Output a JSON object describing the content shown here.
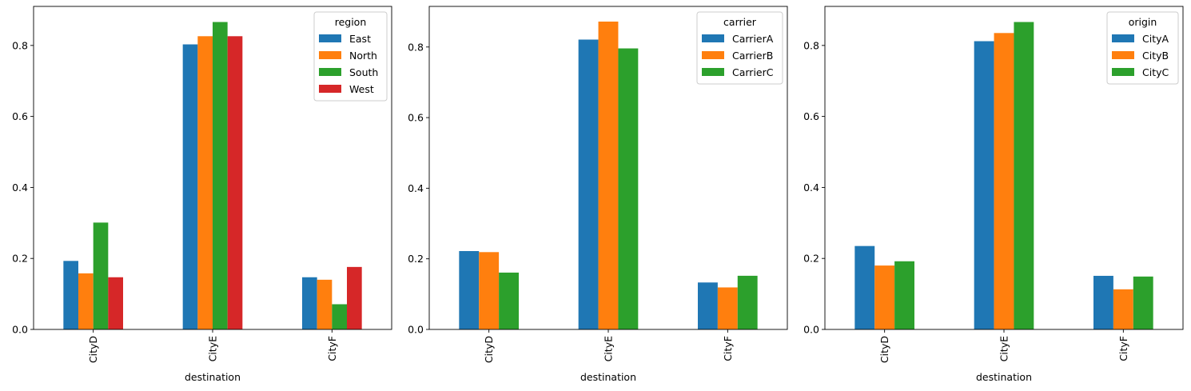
{
  "chart_data": [
    {
      "type": "bar",
      "categories": [
        "CityD",
        "CityE",
        "CityF"
      ],
      "xlabel": "destination",
      "ylabel": "",
      "ylim": [
        0,
        0.91
      ],
      "yticks": [
        "0.0",
        "0.2",
        "0.4",
        "0.6",
        "0.8"
      ],
      "ytick_values": [
        0,
        0.2,
        0.4,
        0.6,
        0.8
      ],
      "legend_title": "region",
      "legend_placement": "top-right",
      "series": [
        {
          "name": "East",
          "color": "#1f77b4",
          "values": [
            0.193,
            0.803,
            0.147
          ]
        },
        {
          "name": "North",
          "color": "#ff7f0e",
          "values": [
            0.158,
            0.826,
            0.14
          ]
        },
        {
          "name": "South",
          "color": "#2ca02c",
          "values": [
            0.301,
            0.866,
            0.071
          ]
        },
        {
          "name": "West",
          "color": "#d62728",
          "values": [
            0.147,
            0.826,
            0.176
          ]
        }
      ]
    },
    {
      "type": "bar",
      "categories": [
        "CityD",
        "CityE",
        "CityF"
      ],
      "xlabel": "destination",
      "ylabel": "",
      "ylim": [
        0,
        0.915
      ],
      "yticks": [
        "0.0",
        "0.2",
        "0.4",
        "0.6",
        "0.8"
      ],
      "ytick_values": [
        0,
        0.2,
        0.4,
        0.6,
        0.8
      ],
      "legend_title": "carrier",
      "legend_placement": "top-right",
      "series": [
        {
          "name": "CarrierA",
          "color": "#1f77b4",
          "values": [
            0.222,
            0.821,
            0.133
          ]
        },
        {
          "name": "CarrierB",
          "color": "#ff7f0e",
          "values": [
            0.219,
            0.872,
            0.119
          ]
        },
        {
          "name": "CarrierC",
          "color": "#2ca02c",
          "values": [
            0.161,
            0.796,
            0.152
          ]
        }
      ]
    },
    {
      "type": "bar",
      "categories": [
        "CityD",
        "CityE",
        "CityF"
      ],
      "xlabel": "destination",
      "ylabel": "",
      "ylim": [
        0,
        0.91
      ],
      "yticks": [
        "0.0",
        "0.2",
        "0.4",
        "0.6",
        "0.8"
      ],
      "ytick_values": [
        0,
        0.2,
        0.4,
        0.6,
        0.8
      ],
      "legend_title": "origin",
      "legend_placement": "top-right",
      "series": [
        {
          "name": "CityA",
          "color": "#1f77b4",
          "values": [
            0.235,
            0.812,
            0.151
          ]
        },
        {
          "name": "CityB",
          "color": "#ff7f0e",
          "values": [
            0.18,
            0.835,
            0.113
          ]
        },
        {
          "name": "CityC",
          "color": "#2ca02c",
          "values": [
            0.192,
            0.866,
            0.149
          ]
        }
      ]
    }
  ]
}
